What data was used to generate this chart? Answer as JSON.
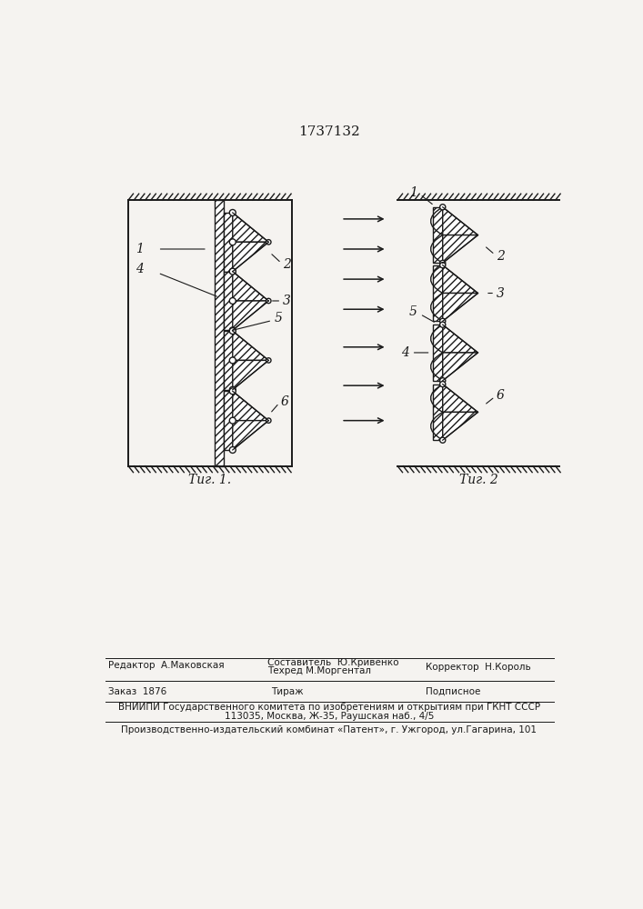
{
  "title": "1737132",
  "fig1_label": "Τиг. 1.",
  "fig2_label": "Τиг. 2",
  "bg_color": "#f5f3f0",
  "line_color": "#1a1a1a",
  "footer_editor": "Редактор  А.Маковская",
  "footer_composer": "Составитель  Ю.Кривенко",
  "footer_techred": "Техред М.Моргентал",
  "footer_corrector": "Корректор  Н.Король",
  "footer_order": "Заказ  1876",
  "footer_tirazh": "Тираж",
  "footer_podp": "Подписное",
  "footer_vniipи": "ВНИИПИ Государственного комитета по изобретениям и открытиям при ГКНТ СССР",
  "footer_address": "113035, Москва, Ж-35, Раушская наб., 4/5",
  "footer_patent": "Производственно-издательский комбинат «Патент», г. Ужгород, ул.Гагарина, 101"
}
